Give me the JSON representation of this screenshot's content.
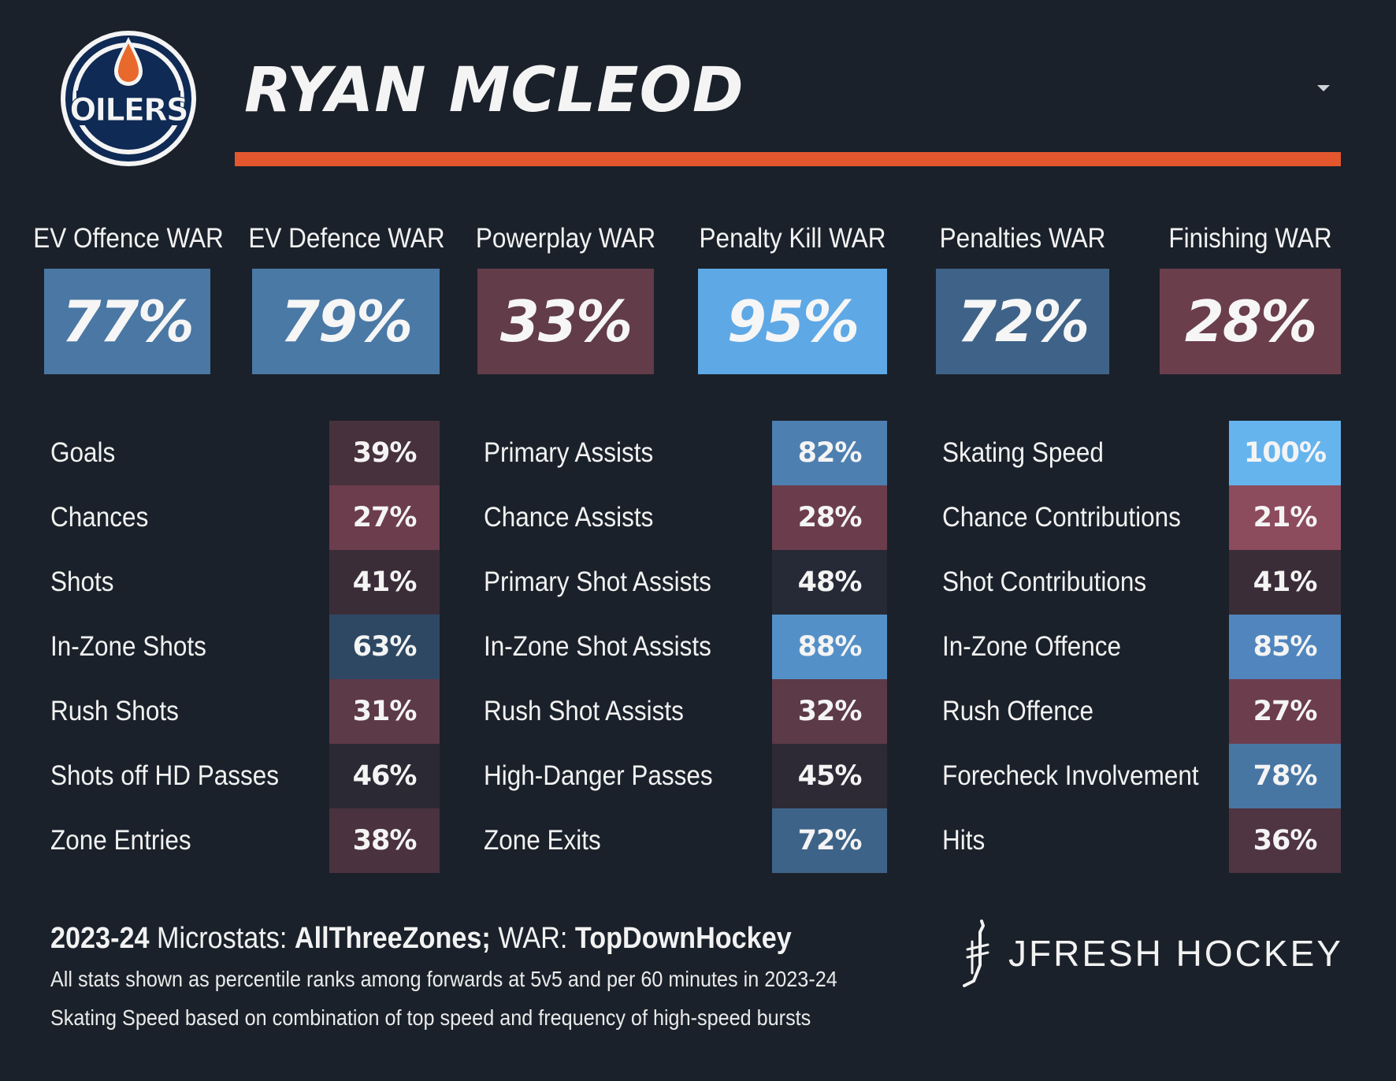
{
  "header": {
    "player_name": "RYAN MCLEOD",
    "logo_text": "OILERS",
    "logo_icon": "oilers-logo-icon",
    "menu_icon": "caret-down-icon",
    "accent_color": "#e4572e"
  },
  "war": [
    {
      "label": "EV Offence WAR",
      "value": "77%",
      "color": "#4a77a3"
    },
    {
      "label": "EV Defence WAR",
      "value": "79%",
      "color": "#4a79a6"
    },
    {
      "label": "Powerplay WAR",
      "value": "33%",
      "color": "#623c48"
    },
    {
      "label": "Penalty Kill WAR",
      "value": "95%",
      "color": "#5ea8e6"
    },
    {
      "label": "Penalties WAR",
      "value": "72%",
      "color": "#3f6388"
    },
    {
      "label": "Finishing WAR",
      "value": "28%",
      "color": "#6b3e4c"
    }
  ],
  "stats": {
    "col1": [
      {
        "label": "Goals",
        "value": "39%",
        "color": "#47313d"
      },
      {
        "label": "Chances",
        "value": "27%",
        "color": "#6c3d4c"
      },
      {
        "label": "Shots",
        "value": "41%",
        "color": "#3b2d38"
      },
      {
        "label": "In-Zone Shots",
        "value": "63%",
        "color": "#2e4863"
      },
      {
        "label": "Rush Shots",
        "value": "31%",
        "color": "#5d3a47"
      },
      {
        "label": "Shots off HD Passes",
        "value": "46%",
        "color": "#2b2934"
      },
      {
        "label": "Zone Entries",
        "value": "38%",
        "color": "#4a323f"
      }
    ],
    "col2": [
      {
        "label": "Primary Assists",
        "value": "82%",
        "color": "#4d7fb0"
      },
      {
        "label": "Chance Assists",
        "value": "28%",
        "color": "#6b3d4c"
      },
      {
        "label": "Primary Shot Assists",
        "value": "48%",
        "color": "#262a36"
      },
      {
        "label": "In-Zone Shot Assists",
        "value": "88%",
        "color": "#5490c8"
      },
      {
        "label": "Rush Shot Assists",
        "value": "32%",
        "color": "#5c3a47"
      },
      {
        "label": "High-Danger Passes",
        "value": "45%",
        "color": "#2e2a35"
      },
      {
        "label": "Zone Exits",
        "value": "72%",
        "color": "#3e6388"
      }
    ],
    "col3": [
      {
        "label": "Skating Speed",
        "value": "100%",
        "color": "#65b4ee"
      },
      {
        "label": "Chance Contributions",
        "value": "21%",
        "color": "#8d4b5e"
      },
      {
        "label": "Shot Contributions",
        "value": "41%",
        "color": "#3b2d38"
      },
      {
        "label": "In-Zone Offence",
        "value": "85%",
        "color": "#5086bd"
      },
      {
        "label": "Rush Offence",
        "value": "27%",
        "color": "#6c3d4c"
      },
      {
        "label": "Forecheck Involvement",
        "value": "78%",
        "color": "#4876a3"
      },
      {
        "label": "Hits",
        "value": "36%",
        "color": "#4f3442"
      }
    ]
  },
  "footer": {
    "season": "2023-24",
    "microstats_label": "Microstats:",
    "microstats_source": "AllThreeZones;",
    "war_label": "WAR:",
    "war_source": "TopDownHockey",
    "note1": "All stats shown as percentile ranks among forwards at 5v5 and per 60 minutes in 2023-24",
    "note2": "Skating Speed based on combination of top speed and frequency of high-speed bursts",
    "brand": "JFRESH HOCKEY",
    "brand_icon": "jfresh-stick-icon"
  }
}
